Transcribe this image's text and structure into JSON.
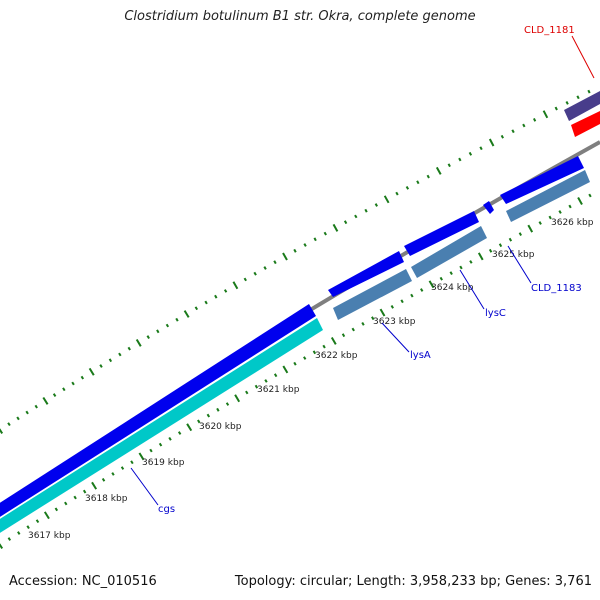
{
  "title": "Clostridium botulinum B1 str. Okra, complete genome",
  "footer": {
    "accession": "Accession: NC_010516",
    "stats": "Topology: circular; Length: 3,958,233 bp; Genes: 3,761"
  },
  "ruler": {
    "labels": [
      "3617 kbp",
      "3618 kbp",
      "3619 kbp",
      "3620 kbp",
      "3621 kbp",
      "3622 kbp",
      "3623 kbp",
      "3624 kbp",
      "3625 kbp",
      "3626 kbp"
    ]
  },
  "genes": [
    {
      "name": "cgs",
      "color": "#0000cc"
    },
    {
      "name": "lysA",
      "color": "#0000cc"
    },
    {
      "name": "lysC",
      "color": "#0000cc"
    },
    {
      "name": "CLD_1183",
      "color": "#0000cc"
    },
    {
      "name": "CLD_1181",
      "color": "#dd0000"
    }
  ],
  "colors": {
    "backbone": "#7f7f7f",
    "cds_forward": "#0000ee",
    "cds_reverse": "#00c8c8",
    "cds_steel": "#4a7fb0",
    "cds_purple": "#483d8b",
    "cds_red": "#ff0000",
    "ticks": "#1a7a1a"
  }
}
